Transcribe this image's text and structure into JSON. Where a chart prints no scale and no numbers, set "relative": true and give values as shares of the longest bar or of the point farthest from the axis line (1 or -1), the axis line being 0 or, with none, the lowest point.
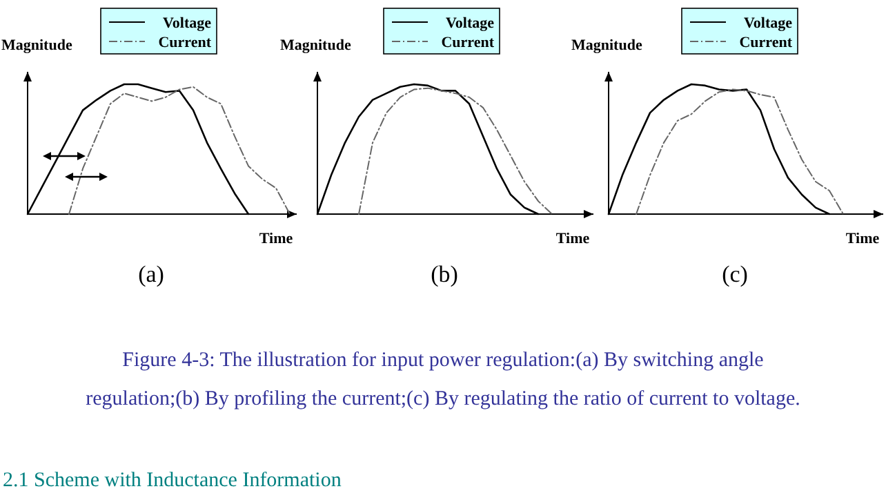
{
  "chart_data": [
    {
      "type": "line",
      "relative": true,
      "xlabel": "Time",
      "ylabel": "Magnitude",
      "legend": "top",
      "annotations": [
        "(a)"
      ],
      "categories": [
        null,
        null,
        null,
        null,
        null,
        null,
        null,
        null,
        null,
        null,
        null,
        null,
        null,
        null,
        null,
        null,
        null,
        null,
        null,
        null
      ],
      "series": [
        {
          "name": "Voltage",
          "color": "#000000",
          "line_style": "solid",
          "values": [
            0,
            0.2,
            0.4,
            0.6,
            0.8,
            0.88,
            0.95,
            1,
            1,
            0.97,
            0.94,
            0.95,
            0.8,
            0.55,
            0.35,
            0.16,
            0,
            null,
            null,
            null
          ]
        },
        {
          "name": "Current",
          "color": "#666666",
          "line_style": "dashed",
          "values": [
            null,
            null,
            null,
            0,
            0.35,
            0.6,
            0.85,
            0.93,
            0.9,
            0.87,
            0.9,
            0.96,
            0.98,
            0.9,
            0.85,
            0.6,
            0.37,
            0.27,
            0.2,
            0
          ]
        }
      ]
    },
    {
      "type": "line",
      "relative": true,
      "xlabel": "Time",
      "ylabel": "Magnitude",
      "legend": "top",
      "annotations": [
        "(b)",
        "Figure 4-3: The illustration for input power regulation:(a) By switching angle regulation;(b) By profiling the current;(c) By regulating the ratio of current to voltage.",
        "2.1 Scheme with Inductance Information"
      ],
      "categories": [
        null,
        null,
        null,
        null,
        null,
        null,
        null,
        null,
        null,
        null,
        null,
        null,
        null,
        null,
        null,
        null,
        null,
        null,
        null,
        null
      ],
      "series": [
        {
          "name": "Voltage",
          "color": "#000000",
          "line_style": "solid",
          "values": [
            0,
            0.3,
            0.55,
            0.75,
            0.88,
            0.93,
            0.98,
            1,
            0.99,
            0.95,
            0.95,
            0.85,
            0.6,
            0.35,
            0.15,
            0.05,
            0,
            null,
            null,
            null
          ]
        },
        {
          "name": "Current",
          "color": "#666666",
          "line_style": "dashed",
          "values": [
            null,
            null,
            null,
            0,
            0.55,
            0.78,
            0.9,
            0.96,
            0.97,
            0.95,
            0.93,
            0.9,
            0.82,
            0.65,
            0.45,
            0.25,
            0.1,
            0,
            null,
            null
          ]
        }
      ]
    },
    {
      "type": "line",
      "relative": true,
      "xlabel": "Time",
      "ylabel": "Magnitude",
      "legend": "top",
      "annotations": [
        "(c)"
      ],
      "categories": [
        null,
        null,
        null,
        null,
        null,
        null,
        null,
        null,
        null,
        null,
        null,
        null,
        null,
        null,
        null,
        null,
        null,
        null,
        null,
        null
      ],
      "series": [
        {
          "name": "Voltage",
          "color": "#000000",
          "line_style": "solid",
          "values": [
            0,
            0.3,
            0.55,
            0.78,
            0.88,
            0.95,
            1,
            0.99,
            0.96,
            0.95,
            0.96,
            0.8,
            0.5,
            0.28,
            0.15,
            0.05,
            0,
            null,
            null,
            null
          ]
        },
        {
          "name": "Current",
          "color": "#666666",
          "line_style": "dashed",
          "values": [
            null,
            null,
            0,
            0.3,
            0.55,
            0.72,
            0.77,
            0.87,
            0.94,
            0.96,
            0.95,
            0.92,
            0.9,
            0.65,
            0.42,
            0.25,
            0.18,
            0,
            null,
            null
          ]
        }
      ]
    }
  ]
}
